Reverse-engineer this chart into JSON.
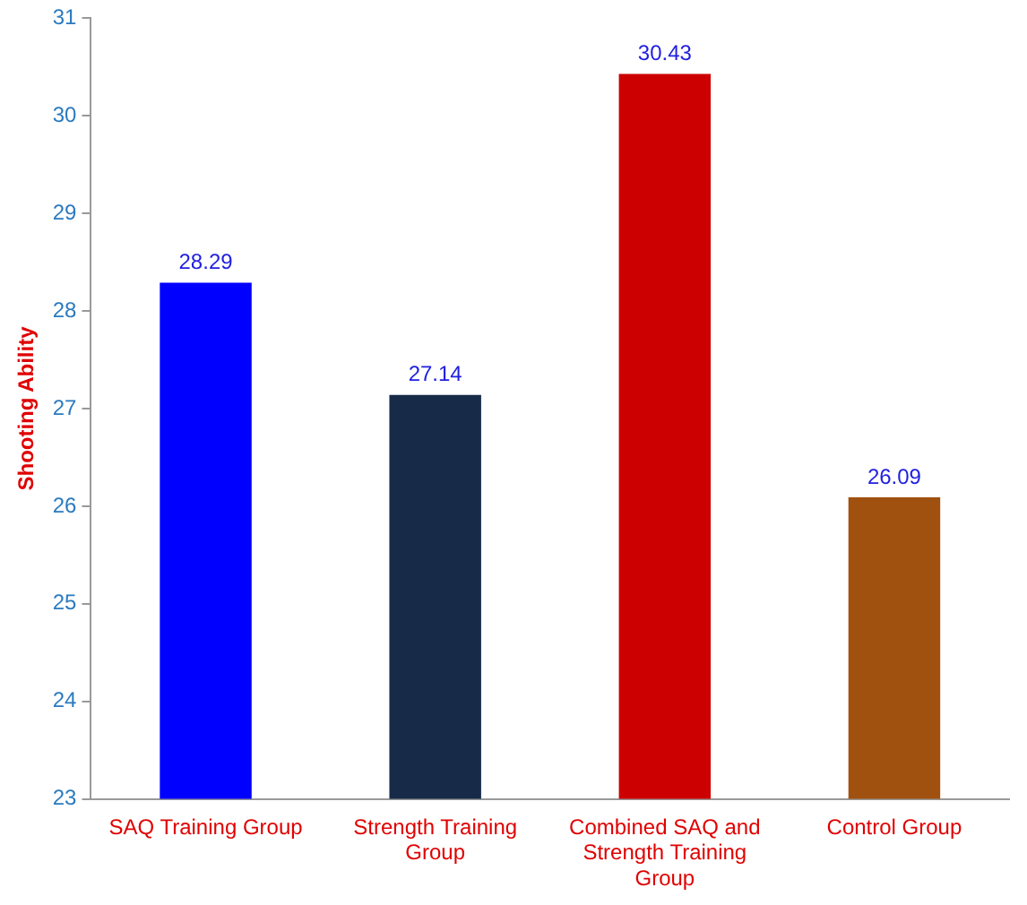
{
  "chart_data": {
    "type": "bar",
    "ylabel": "Shooting Ability",
    "categories": [
      "SAQ Training Group",
      "Strength Training Group",
      "Combined SAQ and Strength Training Group",
      "Control Group"
    ],
    "values": [
      28.29,
      27.14,
      30.43,
      26.09
    ],
    "colors": [
      "#0000ff",
      "#172b48",
      "#cc0000",
      "#a0500f"
    ],
    "ylim": [
      23,
      31
    ],
    "yticks": [
      23,
      24,
      25,
      26,
      27,
      28,
      29,
      30,
      31
    ],
    "grid": false,
    "legend": false,
    "data_labels": true
  }
}
